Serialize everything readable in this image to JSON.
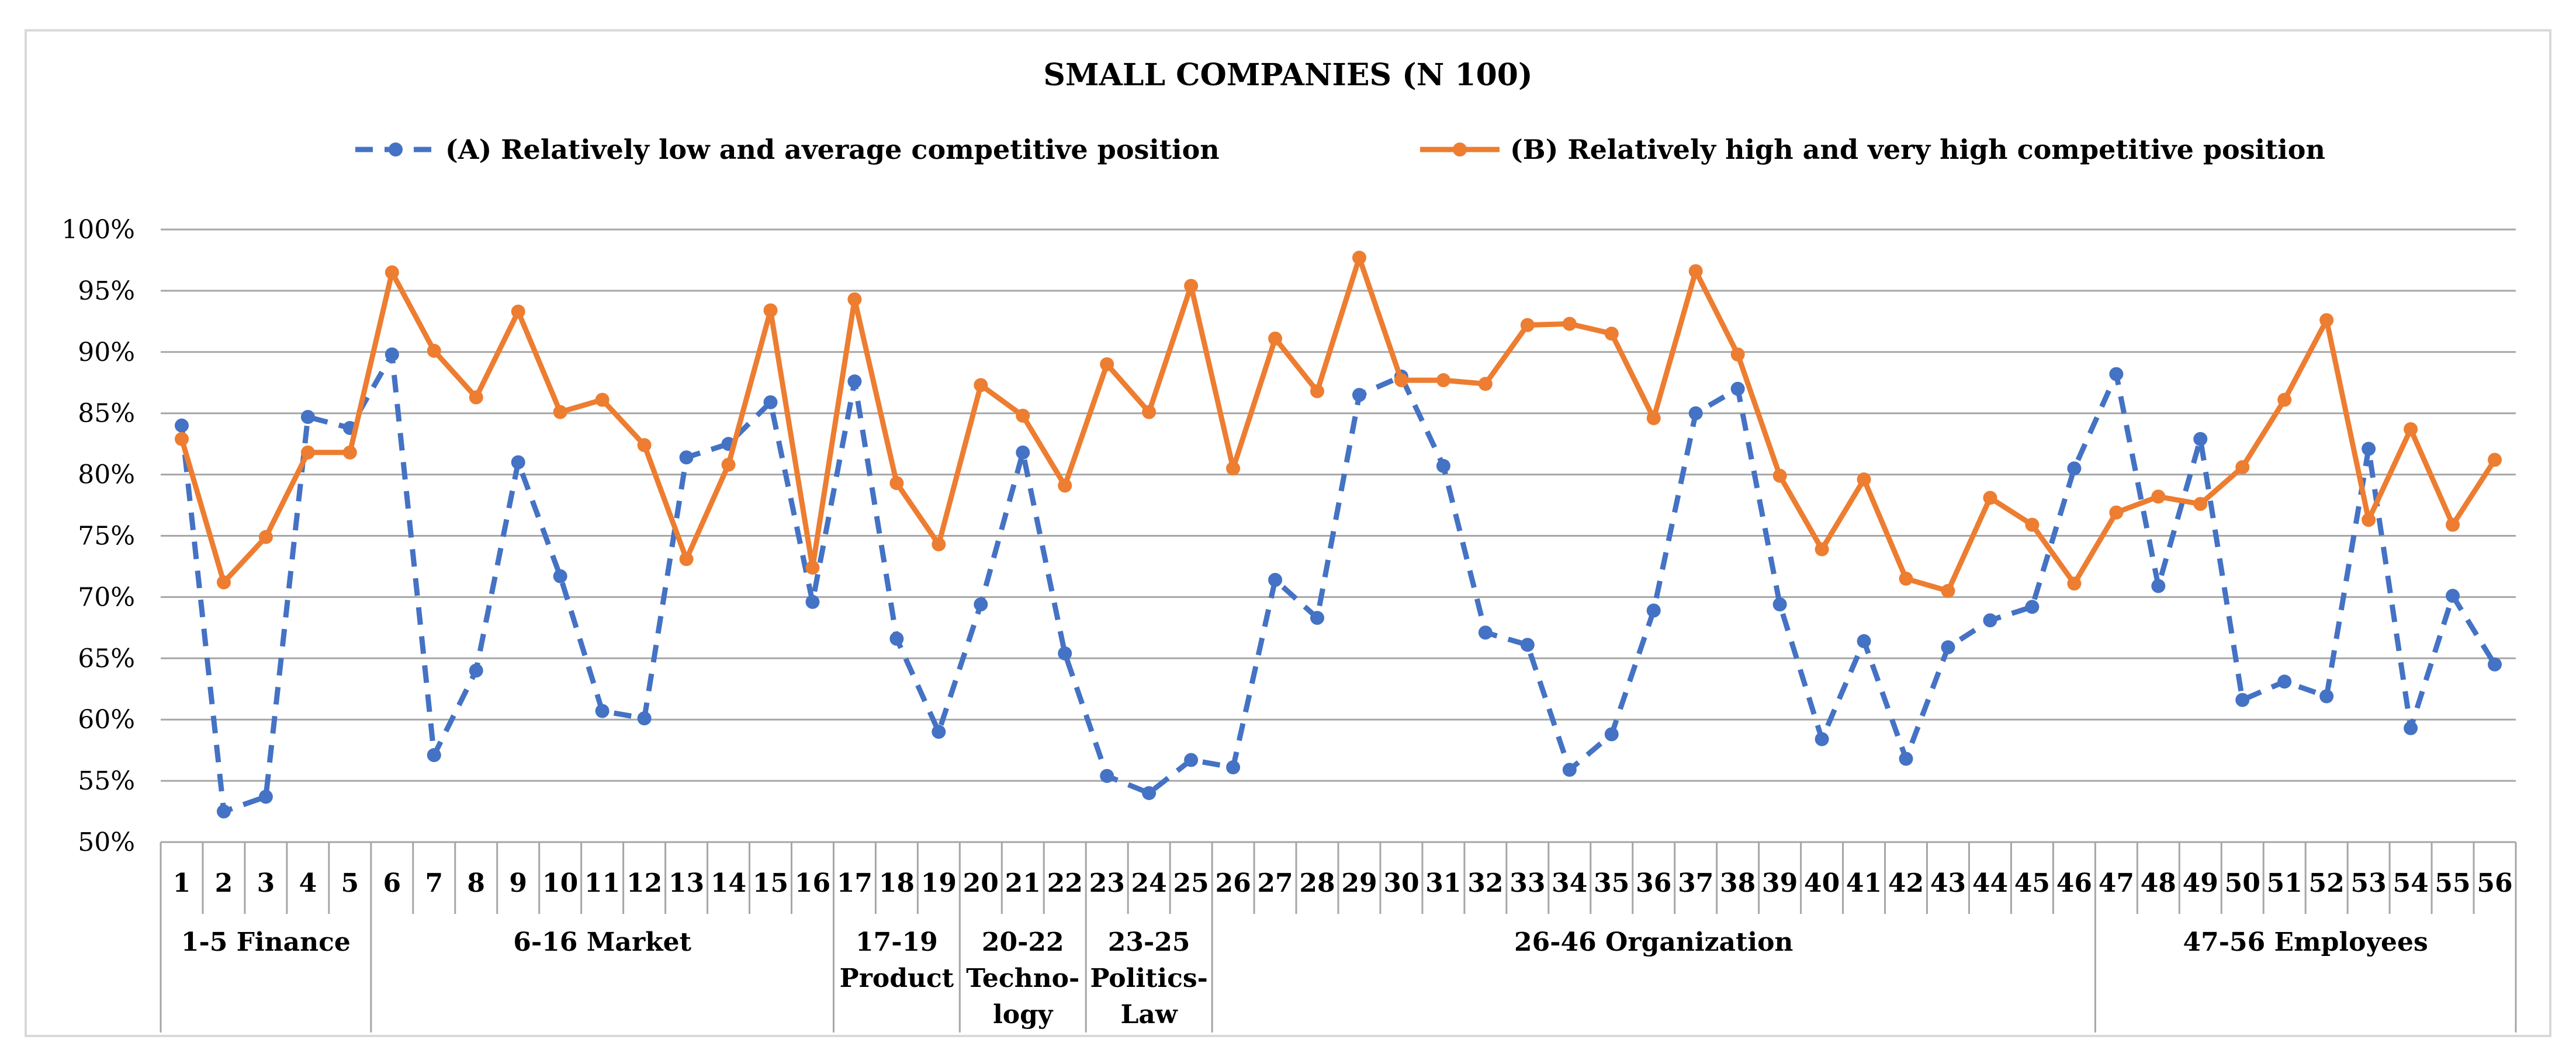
{
  "chart_data": {
    "type": "line",
    "title": "SMALL COMPANIES  (N 100)",
    "xlabel": "",
    "ylabel": "",
    "ylim": [
      0.5,
      1.0
    ],
    "yticks": [
      0.5,
      0.55,
      0.6,
      0.65,
      0.7,
      0.75,
      0.8,
      0.85,
      0.9,
      0.95,
      1.0
    ],
    "ytick_labels": [
      "50%",
      "55%",
      "60%",
      "65%",
      "70%",
      "75%",
      "80%",
      "85%",
      "90%",
      "95%",
      "100%"
    ],
    "grid": true,
    "legend_position": "top",
    "categories": [
      "1",
      "2",
      "3",
      "4",
      "5",
      "6",
      "7",
      "8",
      "9",
      "10",
      "11",
      "12",
      "13",
      "14",
      "15",
      "16",
      "17",
      "18",
      "19",
      "20",
      "21",
      "22",
      "23",
      "24",
      "25",
      "26",
      "27",
      "28",
      "29",
      "30",
      "31",
      "32",
      "33",
      "34",
      "35",
      "36",
      "37",
      "38",
      "39",
      "40",
      "41",
      "42",
      "43",
      "44",
      "45",
      "46",
      "47",
      "48",
      "49",
      "50",
      "51",
      "52",
      "53",
      "54",
      "55",
      "56"
    ],
    "series": [
      {
        "name": "(A) Relatively low and average competitive position",
        "color": "#4472C4",
        "style": "dashed",
        "values": [
          0.84,
          0.525,
          0.537,
          0.847,
          0.838,
          0.898,
          0.571,
          0.64,
          0.81,
          0.717,
          0.607,
          0.601,
          0.814,
          0.825,
          0.859,
          0.696,
          0.876,
          0.666,
          0.59,
          0.694,
          0.818,
          0.654,
          0.554,
          0.54,
          0.567,
          0.561,
          0.714,
          0.683,
          0.865,
          0.88,
          0.807,
          0.671,
          0.661,
          0.559,
          0.588,
          0.689,
          0.85,
          0.87,
          0.694,
          0.584,
          0.664,
          0.568,
          0.659,
          0.681,
          0.692,
          0.805,
          0.882,
          0.709,
          0.829,
          0.616,
          0.631,
          0.619,
          0.821,
          0.593,
          0.701,
          0.645
        ]
      },
      {
        "name": "(B) Relatively high and very high competitive position",
        "color": "#ED7D31",
        "style": "solid",
        "values": [
          0.829,
          0.712,
          0.749,
          0.818,
          0.818,
          0.965,
          0.901,
          0.863,
          0.933,
          0.851,
          0.861,
          0.824,
          0.731,
          0.808,
          0.934,
          0.724,
          0.943,
          0.793,
          0.743,
          0.873,
          0.848,
          0.791,
          0.89,
          0.851,
          0.954,
          0.805,
          0.911,
          0.868,
          0.977,
          0.877,
          0.877,
          0.874,
          0.922,
          0.923,
          0.915,
          0.846,
          0.966,
          0.898,
          0.799,
          0.739,
          0.796,
          0.715,
          0.705,
          0.781,
          0.759,
          0.711,
          0.769,
          0.782,
          0.776,
          0.806,
          0.861,
          0.926,
          0.763,
          0.837,
          0.759,
          0.812
        ]
      }
    ],
    "groups": [
      {
        "start": 1,
        "end": 5,
        "lines": [
          "1-5   Finance"
        ]
      },
      {
        "start": 6,
        "end": 16,
        "lines": [
          "6-16   Market"
        ]
      },
      {
        "start": 17,
        "end": 19,
        "lines": [
          "17-19",
          "Product"
        ]
      },
      {
        "start": 20,
        "end": 22,
        "lines": [
          "20-22",
          "Techno-",
          "logy"
        ]
      },
      {
        "start": 23,
        "end": 25,
        "lines": [
          "23-25",
          "Politics-",
          "Law"
        ]
      },
      {
        "start": 26,
        "end": 46,
        "lines": [
          "26-46   Organization"
        ]
      },
      {
        "start": 47,
        "end": 56,
        "lines": [
          "47-56   Employees"
        ]
      }
    ]
  }
}
